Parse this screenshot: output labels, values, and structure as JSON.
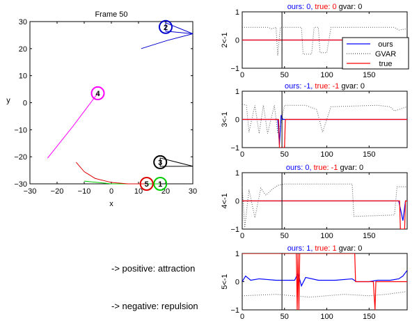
{
  "main_plot": {
    "title": "Frame 50",
    "xlabel": "x",
    "ylabel": "y",
    "xlim": [
      -30,
      30
    ],
    "ylim": [
      -30,
      30
    ],
    "xticks": [
      -30,
      -20,
      -10,
      0,
      10,
      20,
      30
    ],
    "yticks": [
      -30,
      -20,
      -10,
      0,
      10,
      20,
      30
    ],
    "agents": [
      {
        "id": "1",
        "color": "#00cc00",
        "x": 18,
        "y": -30,
        "trail": [
          [
            -10,
            -29
          ],
          [
            -5,
            -29.5
          ],
          [
            0,
            -30
          ],
          [
            10,
            -30
          ],
          [
            18,
            -30
          ]
        ],
        "arrow": [
          18,
          -30
        ]
      },
      {
        "id": "2",
        "color": "#0000cc",
        "x": 20,
        "y": 28,
        "trail": [
          [
            11,
            20
          ],
          [
            20.5,
            23
          ],
          [
            30,
            25.5
          ]
        ],
        "arrow": [
          30,
          25.5
        ]
      },
      {
        "id": "3",
        "color": "#000000",
        "x": 18,
        "y": -22,
        "trail": [],
        "arrow": [
          30,
          -23.5
        ]
      },
      {
        "id": "4",
        "color": "#ff00ff",
        "x": -5,
        "y": 3.5,
        "trail": [
          [
            -23.5,
            -20.5
          ],
          [
            -14,
            -8.5
          ],
          [
            -5,
            3.5
          ]
        ],
        "arrow": [
          -5,
          3.5
        ]
      },
      {
        "id": "5",
        "color": "#dd0000",
        "x": 13,
        "y": -30,
        "trail": [
          [
            -13,
            -22
          ],
          [
            -10,
            -25.5
          ],
          [
            -6,
            -28
          ],
          [
            0,
            -29.5
          ],
          [
            6,
            -30
          ],
          [
            13,
            -30
          ]
        ],
        "arrow": [
          13,
          -30
        ]
      }
    ]
  },
  "notes": {
    "positive": "-> positive: attraction",
    "negative": "-> negative: repulsion"
  },
  "legend": {
    "ours": "ours",
    "gvar": "GVAR",
    "true": "true"
  },
  "chart_data": [
    {
      "type": "line",
      "title_parts": [
        {
          "text": "ours: 0,",
          "color": "#0000ff"
        },
        {
          "text": "true: 0",
          "color": "#ff0000"
        },
        {
          "text": "gvar: 0",
          "color": "#000000"
        }
      ],
      "ylabel": "2<-1",
      "xlim": [
        0,
        195
      ],
      "ylim": [
        -1,
        1
      ],
      "xticks": [
        0,
        50,
        100,
        150
      ],
      "yticks": [
        -1,
        0,
        1
      ],
      "marker_x": 47,
      "series": [
        {
          "name": "ours",
          "color": "#0000ff",
          "points": [
            [
              0,
              0
            ],
            [
              195,
              0
            ]
          ]
        },
        {
          "name": "GVAR",
          "color": "#555555",
          "points": [
            [
              0,
              0.45
            ],
            [
              30,
              0.45
            ],
            [
              35,
              0.4
            ],
            [
              40,
              0.45
            ],
            [
              42,
              -0.55
            ],
            [
              45,
              0.45
            ],
            [
              70,
              0.45
            ],
            [
              72,
              -0.5
            ],
            [
              82,
              -0.5
            ],
            [
              85,
              0.45
            ],
            [
              90,
              0.45
            ],
            [
              92,
              -0.45
            ],
            [
              100,
              -0.45
            ],
            [
              105,
              0.45
            ],
            [
              180,
              0.45
            ],
            [
              185,
              0.35
            ],
            [
              195,
              0.4
            ]
          ]
        },
        {
          "name": "true",
          "color": "#ff0000",
          "points": [
            [
              0,
              0
            ],
            [
              195,
              0
            ]
          ]
        }
      ]
    },
    {
      "type": "line",
      "title_parts": [
        {
          "text": "ours: -1,",
          "color": "#0000ff"
        },
        {
          "text": "true: -1",
          "color": "#ff0000"
        },
        {
          "text": "gvar: 0",
          "color": "#000000"
        }
      ],
      "ylabel": "3<-1",
      "xlim": [
        0,
        195
      ],
      "ylim": [
        -1,
        1
      ],
      "xticks": [
        0,
        50,
        100,
        150
      ],
      "yticks": [
        -1,
        0,
        1
      ],
      "marker_x": 47,
      "series": [
        {
          "name": "ours",
          "color": "#0000ff",
          "points": [
            [
              0,
              0
            ],
            [
              42,
              0
            ],
            [
              44,
              -0.9
            ],
            [
              46,
              0.15
            ],
            [
              48,
              0
            ],
            [
              195,
              0
            ]
          ]
        },
        {
          "name": "GVAR",
          "color": "#555555",
          "points": [
            [
              0,
              0.55
            ],
            [
              5,
              0.5
            ],
            [
              8,
              -0.45
            ],
            [
              15,
              0.5
            ],
            [
              20,
              -0.5
            ],
            [
              25,
              0.5
            ],
            [
              30,
              -0.5
            ],
            [
              38,
              0.5
            ],
            [
              42,
              -0.5
            ],
            [
              46,
              -0.1
            ],
            [
              50,
              0.5
            ],
            [
              70,
              0.5
            ],
            [
              75,
              0.5
            ],
            [
              88,
              0.35
            ],
            [
              95,
              -0.45
            ],
            [
              105,
              0.45
            ],
            [
              160,
              0.5
            ],
            [
              175,
              0.45
            ],
            [
              180,
              0.3
            ],
            [
              195,
              0.45
            ]
          ]
        },
        {
          "name": "true",
          "color": "#ff0000",
          "points": [
            [
              0,
              0
            ],
            [
              43,
              0
            ],
            [
              44,
              -1
            ],
            [
              50,
              -1
            ],
            [
              51,
              0
            ],
            [
              195,
              0
            ]
          ]
        }
      ]
    },
    {
      "type": "line",
      "title_parts": [
        {
          "text": "ours: 0,",
          "color": "#0000ff"
        },
        {
          "text": "true: -1",
          "color": "#ff0000"
        },
        {
          "text": "gvar: 0",
          "color": "#000000"
        }
      ],
      "ylabel": "4<-1",
      "xlim": [
        0,
        195
      ],
      "ylim": [
        -1,
        1
      ],
      "xticks": [
        0,
        50,
        100,
        150
      ],
      "yticks": [
        -1,
        0,
        1
      ],
      "marker_x": 47,
      "series": [
        {
          "name": "ours",
          "color": "#0000ff",
          "points": [
            [
              0,
              0
            ],
            [
              185,
              0
            ],
            [
              190,
              -0.7
            ],
            [
              193,
              0
            ],
            [
              195,
              0
            ]
          ]
        },
        {
          "name": "GVAR",
          "color": "#555555",
          "points": [
            [
              0,
              0.5
            ],
            [
              3,
              -0.95
            ],
            [
              8,
              0.4
            ],
            [
              15,
              -0.6
            ],
            [
              22,
              0.45
            ],
            [
              28,
              0.2
            ],
            [
              35,
              0.4
            ],
            [
              42,
              0.55
            ],
            [
              50,
              0.6
            ],
            [
              130,
              0.6
            ],
            [
              132,
              -0.55
            ],
            [
              180,
              -0.5
            ],
            [
              183,
              0.5
            ],
            [
              195,
              0.5
            ]
          ]
        },
        {
          "name": "true",
          "color": "#ff0000",
          "points": [
            [
              0,
              0
            ],
            [
              186,
              0
            ],
            [
              187,
              -1
            ],
            [
              192,
              -1
            ],
            [
              193,
              0
            ],
            [
              195,
              0
            ]
          ]
        }
      ]
    },
    {
      "type": "line",
      "title_parts": [
        {
          "text": "ours: 1,",
          "color": "#0000ff"
        },
        {
          "text": "true: 1",
          "color": "#ff0000"
        },
        {
          "text": "gvar: 0",
          "color": "#000000"
        }
      ],
      "ylabel": "5<-1",
      "xlim": [
        0,
        195
      ],
      "ylim": [
        -1,
        1
      ],
      "xticks": [
        0,
        50,
        100,
        150
      ],
      "yticks": [
        -1,
        0,
        1
      ],
      "marker_x": 47,
      "series": [
        {
          "name": "ours",
          "color": "#0000ff",
          "points": [
            [
              0,
              0
            ],
            [
              4,
              0.2
            ],
            [
              10,
              0.05
            ],
            [
              20,
              0.1
            ],
            [
              40,
              0.05
            ],
            [
              55,
              0.05
            ],
            [
              62,
              0.05
            ],
            [
              66,
              0.3
            ],
            [
              70,
              -0.15
            ],
            [
              75,
              0.15
            ],
            [
              90,
              0.05
            ],
            [
              110,
              0.05
            ],
            [
              130,
              0.1
            ],
            [
              135,
              0
            ],
            [
              150,
              0
            ],
            [
              160,
              0.05
            ],
            [
              175,
              0.05
            ],
            [
              185,
              0.1
            ],
            [
              190,
              0.2
            ],
            [
              195,
              0.4
            ]
          ]
        },
        {
          "name": "GVAR",
          "color": "#555555",
          "points": [
            [
              0,
              -0.5
            ],
            [
              40,
              -0.45
            ],
            [
              80,
              -0.55
            ],
            [
              120,
              -0.45
            ],
            [
              150,
              -0.5
            ],
            [
              170,
              -0.45
            ],
            [
              195,
              -0.35
            ]
          ]
        },
        {
          "name": "true",
          "color": "#ff0000",
          "points": [
            [
              0,
              1
            ],
            [
              64,
              1
            ],
            [
              65,
              -1
            ],
            [
              66,
              1
            ],
            [
              67,
              -1
            ],
            [
              68,
              1
            ],
            [
              133,
              1
            ],
            [
              134,
              0
            ],
            [
              155,
              0
            ],
            [
              157,
              -1
            ],
            [
              158,
              0
            ],
            [
              195,
              0
            ]
          ]
        }
      ]
    }
  ]
}
